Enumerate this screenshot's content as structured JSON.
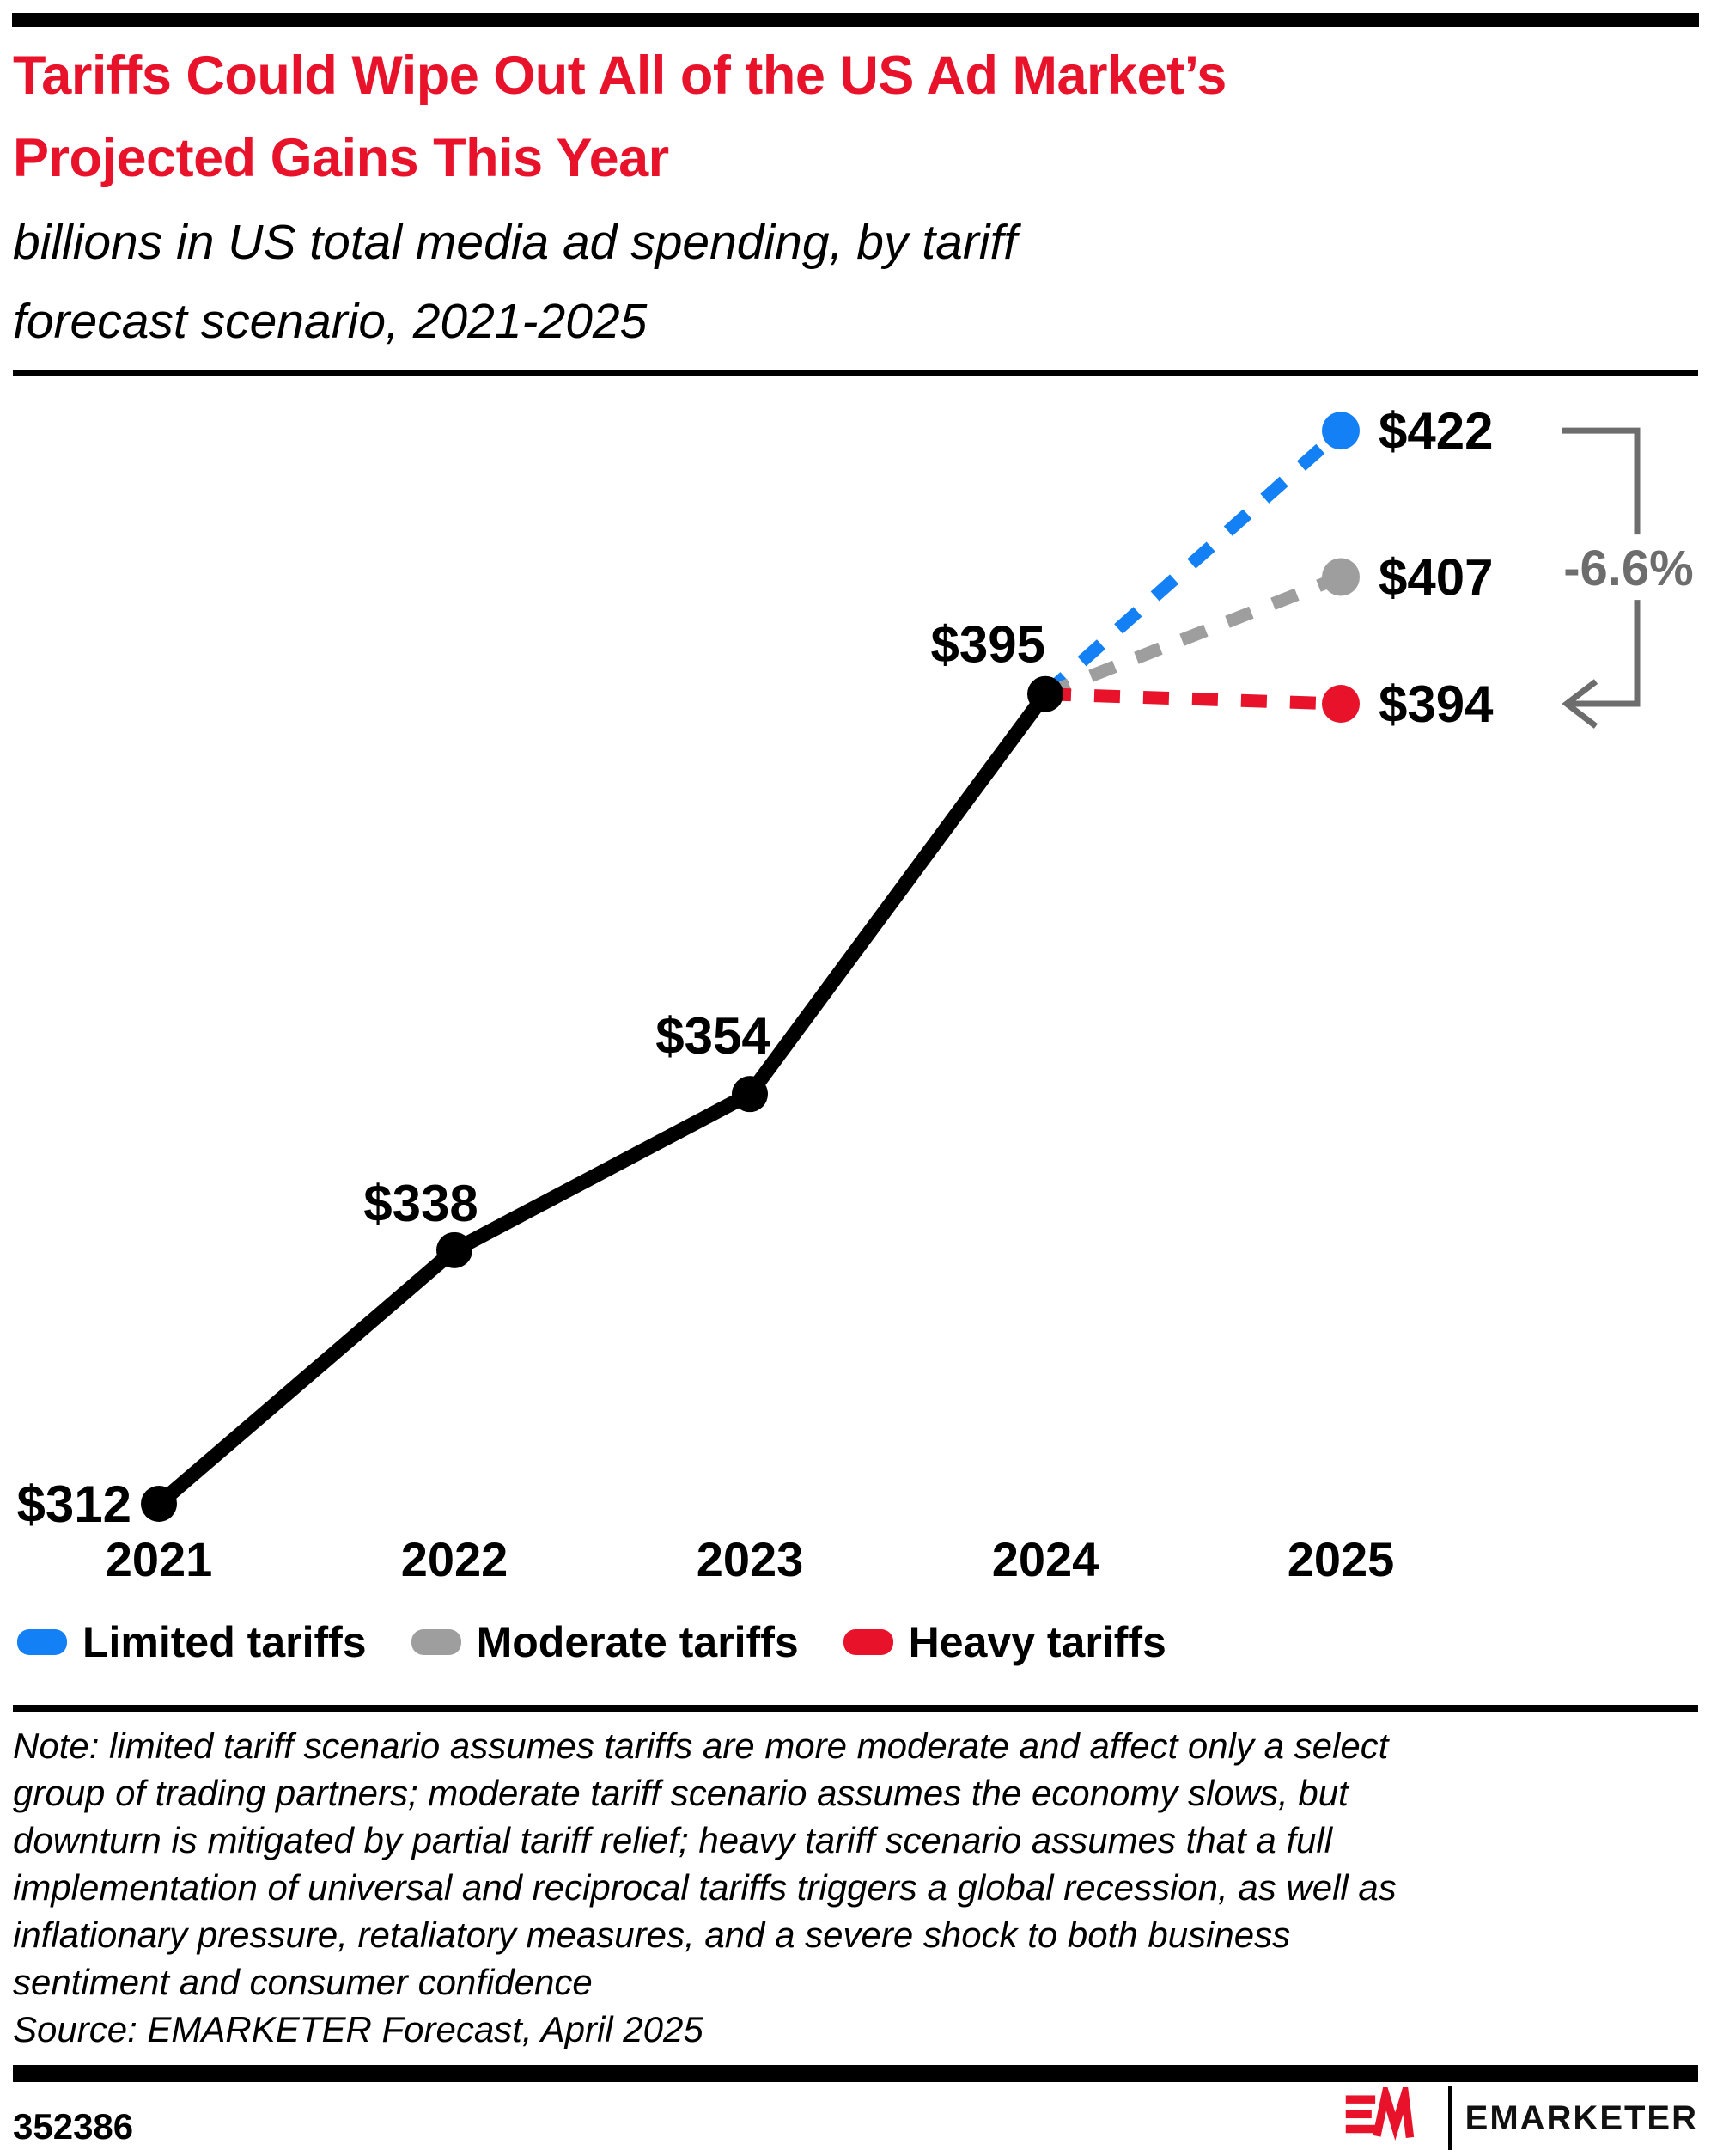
{
  "header": {
    "title": "Tariffs Could Wipe Out All of the US Ad Market’s\nProjected Gains This Year",
    "subtitle": "billions in US total media ad spending, by tariff\nforecast scenario, 2021-2025",
    "title_color": "#e8122a"
  },
  "chart_data": {
    "type": "line",
    "title": "US total media ad spending, by tariff forecast scenario, 2021-2025",
    "unit": "billions of US dollars",
    "x": [
      2021,
      2022,
      2023,
      2024,
      2025
    ],
    "ylim": [
      300,
      430
    ],
    "grid": false,
    "legend_position": "bottom",
    "actual": {
      "name": "US total media ad spending 2021-2024",
      "x": [
        2021,
        2022,
        2023,
        2024
      ],
      "values": [
        312,
        338,
        354,
        395
      ],
      "labels": [
        "$312",
        "$338",
        "$354",
        "$395"
      ],
      "color": "#000000",
      "style": "solid"
    },
    "scenarios": [
      {
        "name": "Limited tariffs",
        "x": [
          2024,
          2025
        ],
        "values": [
          395,
          422
        ],
        "end_label": "$422",
        "color": "#1480f5",
        "style": "dashed"
      },
      {
        "name": "Moderate tariffs",
        "x": [
          2024,
          2025
        ],
        "values": [
          395,
          407
        ],
        "end_label": "$407",
        "color": "#9e9e9e",
        "style": "dashed"
      },
      {
        "name": "Heavy tariffs",
        "x": [
          2024,
          2025
        ],
        "values": [
          395,
          394
        ],
        "end_label": "$394",
        "color": "#e8122a",
        "style": "dashed"
      }
    ],
    "annotation": {
      "text": "-6.6%",
      "color": "#6d6d6d",
      "from_value": 422,
      "to_value": 394
    }
  },
  "legend": {
    "items": [
      {
        "label": "Limited tariffs",
        "color": "#1480f5"
      },
      {
        "label": "Moderate tariffs",
        "color": "#9e9e9e"
      },
      {
        "label": "Heavy tariffs",
        "color": "#e8122a"
      }
    ]
  },
  "note": {
    "lines": [
      "Note: limited tariff scenario assumes tariffs are more moderate and affect only a select",
      "group of trading partners; moderate tariff scenario assumes the economy slows, but",
      "downturn is mitigated by partial tariff relief; heavy tariff scenario assumes that a full",
      "implementation of universal and reciprocal tariffs triggers a global recession, as well as",
      "inflationary pressure, retaliatory measures, and a severe shock to both business",
      "sentiment and consumer confidence"
    ]
  },
  "source": {
    "text": "Source: EMARKETER Forecast, April 2025"
  },
  "footer": {
    "chart_id": "352386",
    "brand_wordmark": "EMARKETER"
  },
  "colors": {
    "red": "#e8122a",
    "blue": "#1480f5",
    "gray": "#9e9e9e",
    "bracket_gray": "#6d6d6d",
    "black": "#000000"
  }
}
